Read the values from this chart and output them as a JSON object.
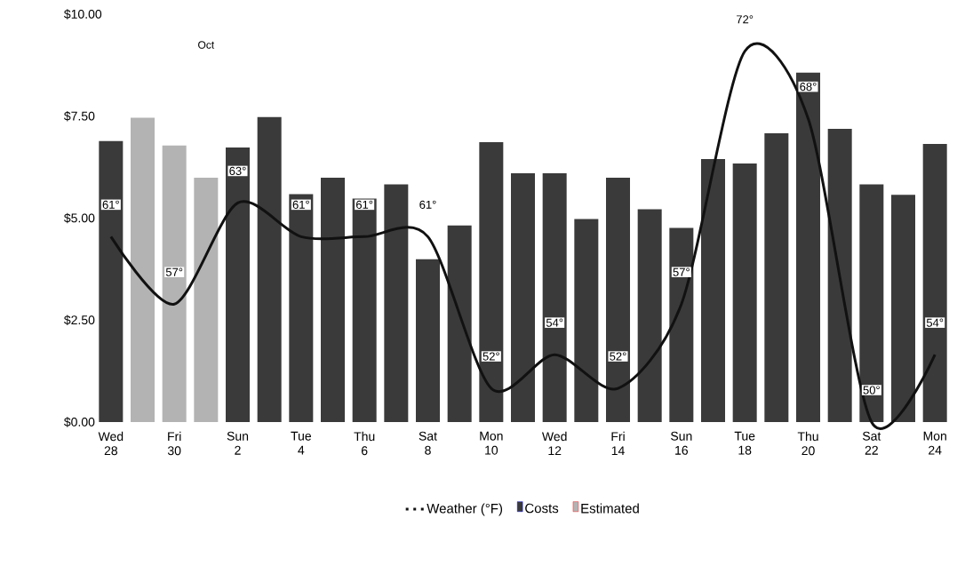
{
  "chart_data": {
    "type": "bar",
    "stacked": true,
    "legend": "bottom",
    "categories": [
      "Wed 28",
      null,
      "Fri 30",
      null,
      "Sun 2",
      null,
      "Tue 4",
      null,
      "Thu 6",
      null,
      "Sat 8",
      null,
      "Mon 10",
      null,
      "Wed 12",
      null,
      "Fri 14",
      null,
      "Sun 16",
      null,
      "Tue 18",
      null,
      "Thu 20",
      null,
      "Sat 22",
      null,
      "Mon 24"
    ],
    "ylim": [
      0,
      10
    ],
    "yticks": [
      {
        "value": 0,
        "label": "$0.00"
      },
      {
        "value": 2.5,
        "label": "$2.50"
      },
      {
        "value": 5,
        "label": "$5.00"
      },
      {
        "value": 7.5,
        "label": "$7.50"
      },
      {
        "value": 10,
        "label": "$10.00"
      }
    ],
    "annotations": [
      "Oct"
    ],
    "series": [
      {
        "name": "Weather (°F)",
        "type": "line",
        "axis": "y2",
        "color": "#111111",
        "values": [
          61,
          null,
          57,
          null,
          63,
          null,
          61,
          null,
          61,
          null,
          61,
          null,
          52,
          null,
          54,
          null,
          52,
          null,
          57,
          null,
          72,
          null,
          68,
          null,
          50,
          null,
          54
        ],
        "value_labels": [
          "61°",
          null,
          "57°",
          null,
          "63°",
          null,
          "61°",
          null,
          "61°",
          null,
          "61°",
          null,
          "52°",
          null,
          "54°",
          null,
          "52°",
          null,
          "57°",
          null,
          "72°",
          null,
          "68°",
          null,
          "50°",
          null,
          "54°"
        ]
      },
      {
        "name": "Costs",
        "color": "#3a3a3a",
        "values": [
          6.89,
          null,
          null,
          null,
          6.73,
          7.48,
          5.59,
          5.99,
          5.48,
          5.83,
          3.99,
          4.82,
          6.86,
          6.1,
          6.1,
          4.98,
          5.99,
          5.22,
          4.76,
          6.45,
          6.34,
          7.08,
          8.57,
          7.19,
          5.83,
          5.57,
          6.82
        ]
      },
      {
        "name": "Estimated",
        "color": "#b3b3b3",
        "values": [
          null,
          7.46,
          6.78,
          5.99,
          null,
          null,
          null,
          null,
          null,
          null,
          null,
          null,
          null,
          null,
          null,
          null,
          null,
          null,
          null,
          null,
          null,
          null,
          null,
          null,
          null,
          null,
          null
        ]
      }
    ]
  }
}
